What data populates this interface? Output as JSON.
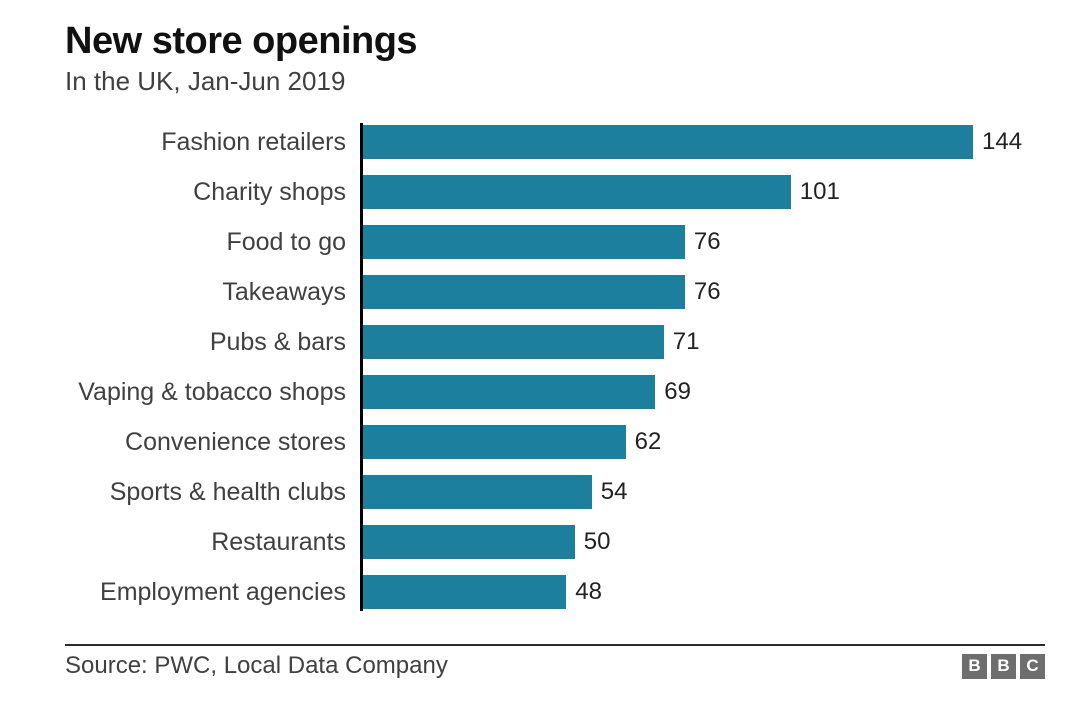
{
  "header": {
    "title": "New store openings",
    "subtitle": "In the UK, Jan-Jun 2019"
  },
  "chart_data": {
    "type": "bar",
    "orientation": "horizontal",
    "title": "New store openings",
    "subtitle": "In the UK, Jan-Jun 2019",
    "categories": [
      "Fashion retailers",
      "Charity shops",
      "Food to go",
      "Takeaways",
      "Pubs & bars",
      "Vaping & tobacco shops",
      "Convenience stores",
      "Sports & health clubs",
      "Restaurants",
      "Employment agencies"
    ],
    "values": [
      144,
      101,
      76,
      76,
      71,
      69,
      62,
      54,
      50,
      48
    ],
    "value_labels_shown": true,
    "xlim": [
      0,
      144
    ],
    "grid": false,
    "legend": "none",
    "sorted": "descending"
  },
  "footer": {
    "source": "Source: PWC, Local Data Company",
    "logo_letters": [
      "B",
      "B",
      "C"
    ]
  },
  "colors": {
    "bar": "#1c7f9d",
    "axis": "#000000",
    "title": "#111111",
    "subtitle": "#404040",
    "category_label": "#404040",
    "value_label": "#222222",
    "logo_background": "#6e6e6e",
    "logo_letter": "#ffffff"
  }
}
